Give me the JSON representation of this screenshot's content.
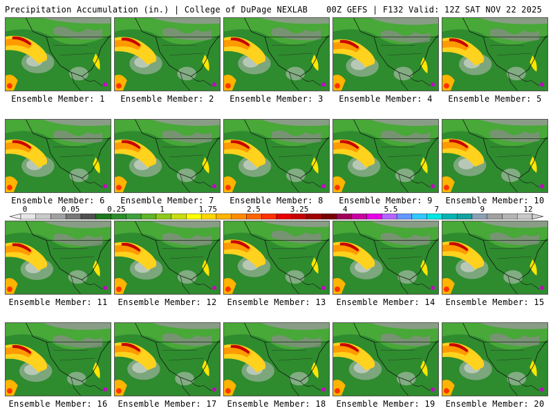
{
  "header": {
    "left_title": "Precipitation Accumulation (in.) | College of DuPage NEXLAB",
    "right_title": "00Z GEFS | F132 Valid: 12Z SAT NOV 22 2025"
  },
  "panel_label_prefix": "Ensemble Member:",
  "members": [
    1,
    2,
    3,
    4,
    5,
    6,
    7,
    8,
    9,
    10,
    11,
    12,
    13,
    14,
    15,
    16,
    17,
    18,
    19,
    20
  ],
  "colorbar": {
    "tick_labels": [
      "0",
      "0.05",
      "0.25",
      "1",
      "1.75",
      "2.5",
      "3.25",
      "4",
      "5.5",
      "7",
      "9",
      "12"
    ],
    "colors": [
      "#e6e6e6",
      "#c8c8c8",
      "#a0a0a0",
      "#787878",
      "#505050",
      "#1e781e",
      "#2d8c2d",
      "#3ca03c",
      "#60b428",
      "#90c81e",
      "#c8dc14",
      "#ffff00",
      "#ffd700",
      "#ffb400",
      "#ff8c00",
      "#ff6400",
      "#ff3200",
      "#e60000",
      "#c80000",
      "#a00000",
      "#780000",
      "#a0005a",
      "#c800a0",
      "#e600e6",
      "#b464ff",
      "#6496ff",
      "#32c8ff",
      "#00e6e6",
      "#00b4b4",
      "#14a0a0",
      "#8ca0b4",
      "#a0a0a0",
      "#b4b4b4",
      "#c8c8c8"
    ]
  }
}
